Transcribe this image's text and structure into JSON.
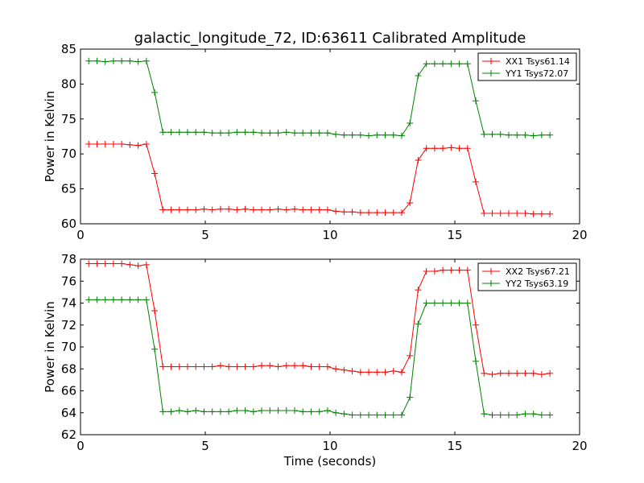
{
  "figure": {
    "title": "galactic_longitude_72, ID:63611 Calibrated Amplitude"
  },
  "chart_data": [
    {
      "type": "line",
      "ylabel": "Power in Kelvin",
      "xlabel": "",
      "xlim": [
        0,
        20
      ],
      "ylim": [
        60,
        85
      ],
      "x_ticks": [
        0,
        5,
        10,
        15,
        20
      ],
      "y_ticks": [
        60,
        65,
        70,
        75,
        80,
        85
      ],
      "x_tick_labels": [
        "0",
        "5",
        "10",
        "15",
        "20"
      ],
      "y_tick_labels": [
        "60",
        "65",
        "70",
        "75",
        "80",
        "85"
      ],
      "legend_position": "top-right",
      "x": [
        0.33,
        0.66,
        0.99,
        1.32,
        1.65,
        1.98,
        2.31,
        2.64,
        2.97,
        3.3,
        3.63,
        3.96,
        4.29,
        4.62,
        4.95,
        5.28,
        5.61,
        5.94,
        6.27,
        6.6,
        6.93,
        7.26,
        7.59,
        7.92,
        8.25,
        8.58,
        8.91,
        9.24,
        9.57,
        9.9,
        10.23,
        10.56,
        10.89,
        11.22,
        11.55,
        11.88,
        12.21,
        12.54,
        12.87,
        13.2,
        13.53,
        13.86,
        14.19,
        14.52,
        14.85,
        15.18,
        15.51,
        15.84,
        16.17,
        16.5,
        16.83,
        17.16,
        17.49,
        17.82,
        18.15,
        18.48,
        18.81
      ],
      "series": [
        {
          "name": "XX1 Tsys61.14",
          "color": "#ff0000",
          "values": [
            71.4,
            71.4,
            71.4,
            71.4,
            71.4,
            71.3,
            71.2,
            71.4,
            67.2,
            62.0,
            62.0,
            62.0,
            62.0,
            62.0,
            62.1,
            62.0,
            62.1,
            62.1,
            62.0,
            62.1,
            62.0,
            62.0,
            62.0,
            62.1,
            62.0,
            62.1,
            62.0,
            62.0,
            62.0,
            62.0,
            61.8,
            61.7,
            61.7,
            61.6,
            61.6,
            61.6,
            61.6,
            61.6,
            61.6,
            63.0,
            69.1,
            70.8,
            70.8,
            70.8,
            70.9,
            70.8,
            70.8,
            66.0,
            61.5,
            61.5,
            61.5,
            61.5,
            61.5,
            61.5,
            61.4,
            61.4,
            61.4
          ]
        },
        {
          "name": "YY1 Tsys72.07",
          "color": "#008000",
          "values": [
            83.3,
            83.3,
            83.2,
            83.3,
            83.3,
            83.3,
            83.2,
            83.3,
            78.8,
            73.1,
            73.1,
            73.1,
            73.1,
            73.1,
            73.1,
            73.0,
            73.0,
            73.0,
            73.1,
            73.1,
            73.1,
            73.0,
            73.0,
            73.0,
            73.1,
            73.0,
            73.0,
            73.0,
            73.0,
            73.0,
            72.8,
            72.7,
            72.7,
            72.7,
            72.6,
            72.7,
            72.7,
            72.7,
            72.6,
            74.4,
            81.2,
            82.9,
            82.9,
            82.9,
            82.9,
            82.9,
            82.9,
            77.6,
            72.8,
            72.8,
            72.8,
            72.7,
            72.7,
            72.7,
            72.6,
            72.7,
            72.7
          ]
        }
      ]
    },
    {
      "type": "line",
      "ylabel": "Power in Kelvin",
      "xlabel": "Time (seconds)",
      "xlim": [
        0,
        20
      ],
      "ylim": [
        62,
        78
      ],
      "x_ticks": [
        0,
        5,
        10,
        15,
        20
      ],
      "y_ticks": [
        62,
        64,
        66,
        68,
        70,
        72,
        74,
        76,
        78
      ],
      "x_tick_labels": [
        "0",
        "5",
        "10",
        "15",
        "20"
      ],
      "y_tick_labels": [
        "62",
        "64",
        "66",
        "68",
        "70",
        "72",
        "74",
        "76",
        "78"
      ],
      "legend_position": "top-right",
      "x": [
        0.33,
        0.66,
        0.99,
        1.32,
        1.65,
        1.98,
        2.31,
        2.64,
        2.97,
        3.3,
        3.63,
        3.96,
        4.29,
        4.62,
        4.95,
        5.28,
        5.61,
        5.94,
        6.27,
        6.6,
        6.93,
        7.26,
        7.59,
        7.92,
        8.25,
        8.58,
        8.91,
        9.24,
        9.57,
        9.9,
        10.23,
        10.56,
        10.89,
        11.22,
        11.55,
        11.88,
        12.21,
        12.54,
        12.87,
        13.2,
        13.53,
        13.86,
        14.19,
        14.52,
        14.85,
        15.18,
        15.51,
        15.84,
        16.17,
        16.5,
        16.83,
        17.16,
        17.49,
        17.82,
        18.15,
        18.48,
        18.81
      ],
      "series": [
        {
          "name": "XX2 Tsys67.21",
          "color": "#ff0000",
          "values": [
            77.6,
            77.6,
            77.6,
            77.6,
            77.6,
            77.5,
            77.4,
            77.5,
            73.3,
            68.2,
            68.2,
            68.2,
            68.2,
            68.2,
            68.2,
            68.2,
            68.3,
            68.2,
            68.2,
            68.2,
            68.2,
            68.3,
            68.3,
            68.2,
            68.3,
            68.3,
            68.3,
            68.2,
            68.2,
            68.2,
            68.0,
            67.9,
            67.8,
            67.7,
            67.7,
            67.7,
            67.7,
            67.8,
            67.7,
            69.2,
            75.2,
            76.9,
            76.9,
            77.0,
            77.0,
            77.0,
            77.0,
            72.0,
            67.6,
            67.5,
            67.6,
            67.6,
            67.6,
            67.6,
            67.6,
            67.5,
            67.6
          ]
        },
        {
          "name": "YY2 Tsys63.19",
          "color": "#008000",
          "values": [
            74.3,
            74.3,
            74.3,
            74.3,
            74.3,
            74.3,
            74.3,
            74.3,
            69.8,
            64.1,
            64.1,
            64.2,
            64.1,
            64.2,
            64.1,
            64.1,
            64.1,
            64.1,
            64.2,
            64.2,
            64.1,
            64.2,
            64.2,
            64.2,
            64.2,
            64.2,
            64.1,
            64.1,
            64.1,
            64.2,
            64.0,
            63.9,
            63.8,
            63.8,
            63.8,
            63.8,
            63.8,
            63.8,
            63.8,
            65.4,
            72.1,
            74.0,
            74.0,
            74.0,
            74.0,
            74.0,
            74.0,
            68.7,
            63.9,
            63.8,
            63.8,
            63.8,
            63.8,
            63.9,
            63.9,
            63.8,
            63.8
          ]
        }
      ]
    }
  ]
}
